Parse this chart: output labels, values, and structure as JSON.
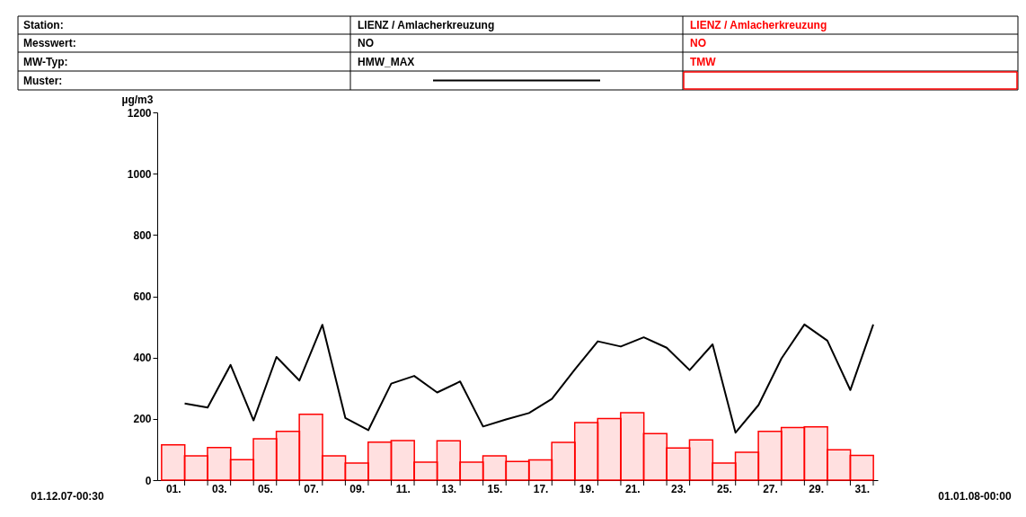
{
  "chart_data": {
    "type": "bar",
    "ylabel": "µg/m3",
    "annotations": [
      "Station:",
      "Messwert:",
      "MW-Typ:",
      "Muster:",
      "LIENZ / Amlacherkreuzung",
      "NO",
      "LIENZ / Amlacherkreuzung",
      "NO",
      "01.12.07-00:30",
      "01.01.08-00:00"
    ],
    "legend": "top",
    "grid": false,
    "marker": "none",
    "line_style": "solid",
    "xlim": [
      0,
      31
    ],
    "ylim": [
      0,
      1200
    ],
    "yticks": [
      0,
      200,
      400,
      600,
      800,
      1000,
      1200
    ],
    "xticks": [
      {
        "value": 0.5,
        "label": "01."
      },
      {
        "value": 2.5,
        "label": "03."
      },
      {
        "value": 4.5,
        "label": "05."
      },
      {
        "value": 6.5,
        "label": "07."
      },
      {
        "value": 8.5,
        "label": "09."
      },
      {
        "value": 10.5,
        "label": "11."
      },
      {
        "value": 12.5,
        "label": "13."
      },
      {
        "value": 14.5,
        "label": "15."
      },
      {
        "value": 16.5,
        "label": "17."
      },
      {
        "value": 18.5,
        "label": "19."
      },
      {
        "value": 20.5,
        "label": "21."
      },
      {
        "value": 22.5,
        "label": "23."
      },
      {
        "value": 24.5,
        "label": "25."
      },
      {
        "value": 26.5,
        "label": "27."
      },
      {
        "value": 28.5,
        "label": "29."
      },
      {
        "value": 30.5,
        "label": "31."
      },
      {
        "value": 1,
        "label": null
      },
      {
        "value": 2,
        "label": null
      },
      {
        "value": 3,
        "label": null
      },
      {
        "value": 4,
        "label": null
      },
      {
        "value": 5,
        "label": null
      },
      {
        "value": 6,
        "label": null
      },
      {
        "value": 7,
        "label": null
      },
      {
        "value": 8,
        "label": null
      },
      {
        "value": 9,
        "label": null
      },
      {
        "value": 10,
        "label": null
      },
      {
        "value": 11,
        "label": null
      },
      {
        "value": 12,
        "label": null
      },
      {
        "value": 13,
        "label": null
      },
      {
        "value": 14,
        "label": null
      },
      {
        "value": 15,
        "label": null
      },
      {
        "value": 16,
        "label": null
      },
      {
        "value": 17,
        "label": null
      },
      {
        "value": 18,
        "label": null
      },
      {
        "value": 19,
        "label": null
      },
      {
        "value": 20,
        "label": null
      },
      {
        "value": 21,
        "label": null
      },
      {
        "value": 22,
        "label": null
      },
      {
        "value": 23,
        "label": null
      },
      {
        "value": 24,
        "label": null
      },
      {
        "value": 25,
        "label": null
      },
      {
        "value": 26,
        "label": null
      },
      {
        "value": 27,
        "label": null
      },
      {
        "value": 28,
        "label": null
      },
      {
        "value": 29,
        "label": null
      },
      {
        "value": 30,
        "label": null
      },
      {
        "value": 31,
        "label": null
      }
    ],
    "series": [
      {
        "name": "TMW",
        "color": "#ff0000",
        "x": [
          0.5,
          1.5,
          2.5,
          3.5,
          4.5,
          5.5,
          6.5,
          7.5,
          8.5,
          9.5,
          10.5,
          11.5,
          12.5,
          13.5,
          14.5,
          15.5,
          16.5,
          17.5,
          18.5,
          19.5,
          20.5,
          21.5,
          22.5,
          23.5,
          24.5,
          25.5,
          26.5,
          27.5,
          28.5,
          29.5,
          30.5
        ],
        "values": [
          115,
          79,
          106,
          67,
          135,
          159,
          215,
          79,
          56,
          124,
          129,
          59,
          128,
          59,
          79,
          61,
          66,
          123,
          188,
          201,
          220,
          152,
          105,
          131,
          56,
          91,
          159,
          172,
          174,
          99,
          81
        ]
      },
      {
        "name": "HMW_MAX",
        "type": "line",
        "color": "#000000",
        "x": [
          1,
          2,
          3,
          4,
          5,
          6,
          7,
          8,
          9,
          10,
          11,
          12,
          13,
          14,
          15,
          16,
          17,
          18,
          19,
          20,
          21,
          22,
          23,
          24,
          25,
          26,
          27,
          28,
          29,
          30,
          31
        ],
        "values": [
          250,
          237,
          376,
          195,
          402,
          325,
          507,
          203,
          163,
          315,
          340,
          286,
          322,
          175,
          198,
          219,
          265,
          361,
          453,
          436,
          466,
          432,
          359,
          443,
          155,
          245,
          397,
          508,
          455,
          294,
          508
        ]
      }
    ]
  }
}
